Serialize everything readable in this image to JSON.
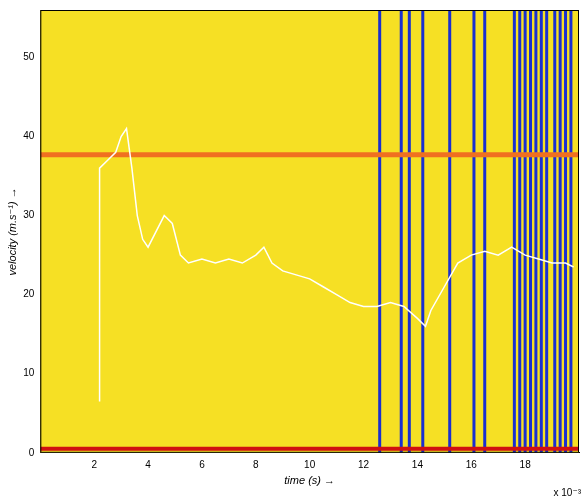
{
  "chart_data": {
    "type": "line",
    "x_label": "time (s) →",
    "y_label": "velocity (m.s⁻¹) →",
    "annotations": [
      {
        "text": "x 10⁻³"
      }
    ],
    "xlim": [
      0,
      20
    ],
    "xticks": [
      2,
      4,
      6,
      8,
      10,
      12,
      14,
      16,
      18
    ],
    "ylim": [
      0,
      56
    ],
    "yticks": [
      0,
      10,
      20,
      30,
      40,
      50
    ],
    "grid": false,
    "series": [
      {
        "color": "#f07020",
        "x": [
          0,
          20
        ],
        "values": [
          37.7,
          37.7
        ]
      },
      {
        "color": "#d01010",
        "x": [
          0,
          20
        ],
        "values": [
          0.5,
          0.5
        ]
      },
      {
        "color": "#ffffff",
        "x": [
          2.2,
          2.2,
          2.5,
          2.8,
          3.0,
          3.2,
          3.4,
          3.6,
          3.8,
          4.0,
          4.3,
          4.6,
          4.9,
          5.2,
          5.5,
          6.0,
          6.5,
          7.0,
          7.5,
          8.0,
          8.3,
          8.6,
          9.0,
          9.5,
          10.0,
          10.5,
          11.0,
          11.5,
          12.0,
          12.5,
          13.0,
          13.5,
          14.0,
          14.3,
          14.5,
          15.0,
          15.5,
          16.0,
          16.5,
          17.0,
          17.5,
          18.0,
          18.5,
          19.0,
          19.5,
          19.8
        ],
        "values": [
          6.5,
          36,
          37,
          38,
          40,
          41,
          36,
          30,
          27,
          26,
          28,
          30,
          29,
          25,
          24,
          24.5,
          24,
          24.5,
          24,
          25,
          26,
          24,
          23,
          22.5,
          22,
          21,
          20,
          19,
          18.5,
          18.5,
          19,
          18.5,
          17,
          16,
          18,
          21,
          24,
          25,
          25.5,
          25,
          26,
          25,
          24.5,
          24,
          24,
          23.5
        ]
      }
    ],
    "events": {
      "color": "#1a2fd0",
      "x": [
        12.6,
        13.4,
        13.7,
        14.2,
        15.2,
        16.1,
        16.5,
        17.6,
        17.8,
        18.0,
        18.2,
        18.4,
        18.6,
        18.8,
        19.1,
        19.3,
        19.5,
        19.7
      ]
    }
  }
}
